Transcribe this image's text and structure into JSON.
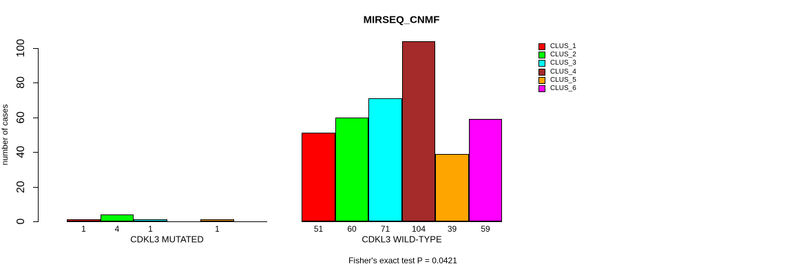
{
  "title": "MIRSEQ_CNMF",
  "ylabel": "number of cases",
  "annotation": "Fisher's exact test P = 0.0421",
  "legend": {
    "items": [
      {
        "label": "CLUS_1",
        "color": "#FF0000"
      },
      {
        "label": "CLUS_2",
        "color": "#00FF00"
      },
      {
        "label": "CLUS_3",
        "color": "#00FFFF"
      },
      {
        "label": "CLUS_4",
        "color": "#A52A2A"
      },
      {
        "label": "CLUS_5",
        "color": "#FFA500"
      },
      {
        "label": "CLUS_6",
        "color": "#FF00FF"
      }
    ]
  },
  "chart_data": {
    "type": "bar",
    "title": "MIRSEQ_CNMF",
    "xlabel": "",
    "ylabel": "number of cases",
    "ylim": [
      0,
      100
    ],
    "yticks": [
      0,
      20,
      40,
      60,
      80,
      100
    ],
    "grid": false,
    "legend_position": "right",
    "series": [
      "CLUS_1",
      "CLUS_2",
      "CLUS_3",
      "CLUS_4",
      "CLUS_5",
      "CLUS_6"
    ],
    "series_colors": [
      "#FF0000",
      "#00FF00",
      "#00FFFF",
      "#A52A2A",
      "#FFA500",
      "#FF00FF"
    ],
    "groups": [
      {
        "label": "CDKL3 MUTATED",
        "values": [
          1,
          4,
          1,
          0,
          1,
          0
        ],
        "bar_labels": [
          "1",
          "4",
          "1",
          "",
          "1",
          ""
        ]
      },
      {
        "label": "CDKL3 WILD-TYPE",
        "values": [
          51,
          60,
          71,
          104,
          39,
          59
        ],
        "bar_labels": [
          "51",
          "60",
          "71",
          "104",
          "39",
          "59"
        ]
      }
    ],
    "annotation": "Fisher's exact test P = 0.0421"
  }
}
